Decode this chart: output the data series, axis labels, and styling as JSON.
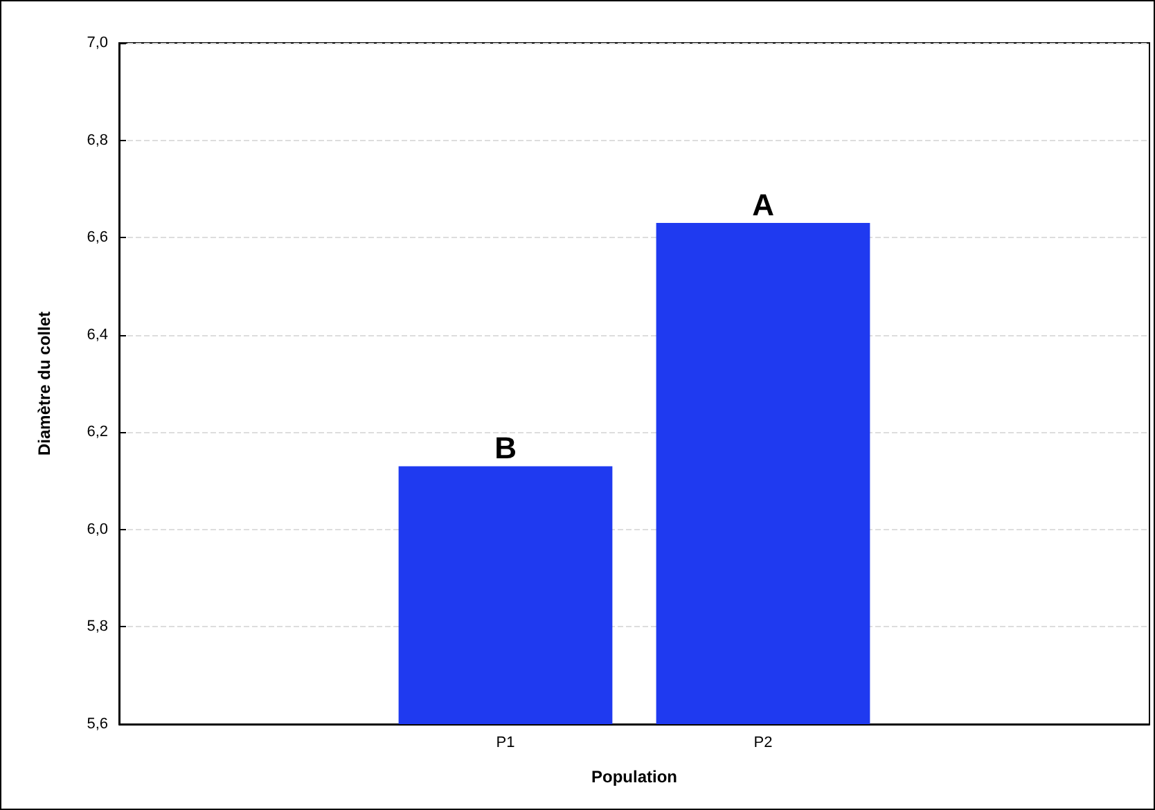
{
  "chart_data": {
    "type": "bar",
    "xlabel": "Population",
    "ylabel": "Diamètre du collet",
    "categories": [
      null,
      "P1",
      "P2",
      null
    ],
    "values": [
      null,
      6.13,
      6.63,
      null
    ],
    "color": "#1f3af0",
    "ylim": [
      5.6,
      7.0
    ],
    "yticks": [
      {
        "value": 5.6,
        "label": "5,6"
      },
      {
        "value": 5.8,
        "label": "5,8"
      },
      {
        "value": 6.0,
        "label": "6,0"
      },
      {
        "value": 6.2,
        "label": "6,2"
      },
      {
        "value": 6.4,
        "label": "6,4"
      },
      {
        "value": 6.6,
        "label": "6,6"
      },
      {
        "value": 6.8,
        "label": "6,8"
      },
      {
        "value": 7.0,
        "label": "7,0"
      }
    ],
    "grid": "y",
    "annotations": [
      {
        "text": "B",
        "x": "P1",
        "y": 6.13
      },
      {
        "text": "A",
        "x": "P2",
        "y": 6.63
      }
    ]
  }
}
